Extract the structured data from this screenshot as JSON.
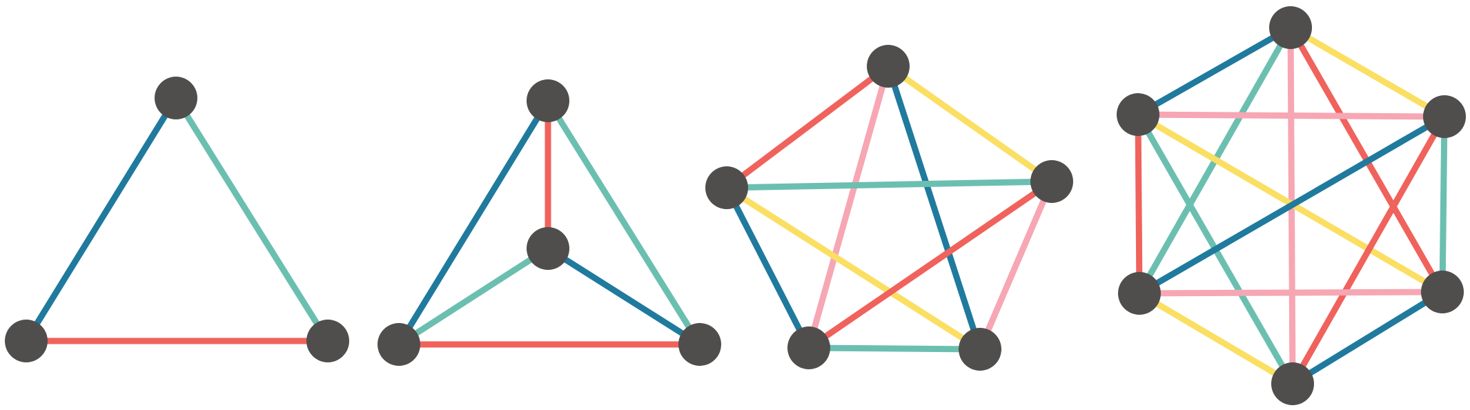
{
  "colors": {
    "node": "#4f4e4c",
    "blue": "#1f7a9e",
    "teal": "#6bbfb0",
    "red": "#f0625c",
    "pink": "#f7a6b4",
    "yellow": "#fadf63"
  },
  "graphs": [
    {
      "name": "complete-graph-3",
      "nodes": [
        "a",
        "b",
        "c"
      ],
      "edges": [
        {
          "from": "a",
          "to": "b",
          "color": "blue"
        },
        {
          "from": "a",
          "to": "c",
          "color": "teal"
        },
        {
          "from": "b",
          "to": "c",
          "color": "red"
        }
      ]
    },
    {
      "name": "complete-graph-4",
      "nodes": [
        "top",
        "center",
        "left",
        "right"
      ],
      "edges": [
        {
          "from": "top",
          "to": "left",
          "color": "blue"
        },
        {
          "from": "top",
          "to": "right",
          "color": "teal"
        },
        {
          "from": "top",
          "to": "center",
          "color": "red"
        },
        {
          "from": "center",
          "to": "left",
          "color": "teal"
        },
        {
          "from": "center",
          "to": "right",
          "color": "blue"
        },
        {
          "from": "left",
          "to": "right",
          "color": "red"
        }
      ]
    },
    {
      "name": "complete-graph-5",
      "nodes": [
        "top",
        "left",
        "right",
        "bottom-left",
        "bottom-right"
      ],
      "edges": [
        {
          "from": "top",
          "to": "left",
          "color": "red"
        },
        {
          "from": "top",
          "to": "right",
          "color": "yellow"
        },
        {
          "from": "top",
          "to": "bottom-left",
          "color": "pink"
        },
        {
          "from": "top",
          "to": "bottom-right",
          "color": "blue"
        },
        {
          "from": "left",
          "to": "right",
          "color": "teal"
        },
        {
          "from": "left",
          "to": "bottom-left",
          "color": "blue"
        },
        {
          "from": "left",
          "to": "bottom-right",
          "color": "yellow"
        },
        {
          "from": "right",
          "to": "bottom-left",
          "color": "red"
        },
        {
          "from": "right",
          "to": "bottom-right",
          "color": "pink"
        },
        {
          "from": "bottom-left",
          "to": "bottom-right",
          "color": "teal"
        }
      ]
    },
    {
      "name": "complete-graph-6",
      "nodes": [
        "top",
        "upper-left",
        "upper-right",
        "lower-left",
        "lower-right",
        "bottom"
      ],
      "edges": [
        {
          "from": "top",
          "to": "upper-left",
          "color": "blue"
        },
        {
          "from": "top",
          "to": "upper-right",
          "color": "yellow"
        },
        {
          "from": "top",
          "to": "lower-left",
          "color": "teal"
        },
        {
          "from": "top",
          "to": "lower-right",
          "color": "red"
        },
        {
          "from": "top",
          "to": "bottom",
          "color": "pink"
        },
        {
          "from": "upper-left",
          "to": "upper-right",
          "color": "pink"
        },
        {
          "from": "upper-left",
          "to": "lower-left",
          "color": "red"
        },
        {
          "from": "upper-left",
          "to": "lower-right",
          "color": "yellow"
        },
        {
          "from": "upper-left",
          "to": "bottom",
          "color": "teal"
        },
        {
          "from": "upper-right",
          "to": "lower-left",
          "color": "blue"
        },
        {
          "from": "upper-right",
          "to": "lower-right",
          "color": "teal"
        },
        {
          "from": "upper-right",
          "to": "bottom",
          "color": "red"
        },
        {
          "from": "lower-left",
          "to": "lower-right",
          "color": "pink"
        },
        {
          "from": "lower-left",
          "to": "bottom",
          "color": "yellow"
        },
        {
          "from": "lower-right",
          "to": "bottom",
          "color": "blue"
        }
      ]
    }
  ]
}
